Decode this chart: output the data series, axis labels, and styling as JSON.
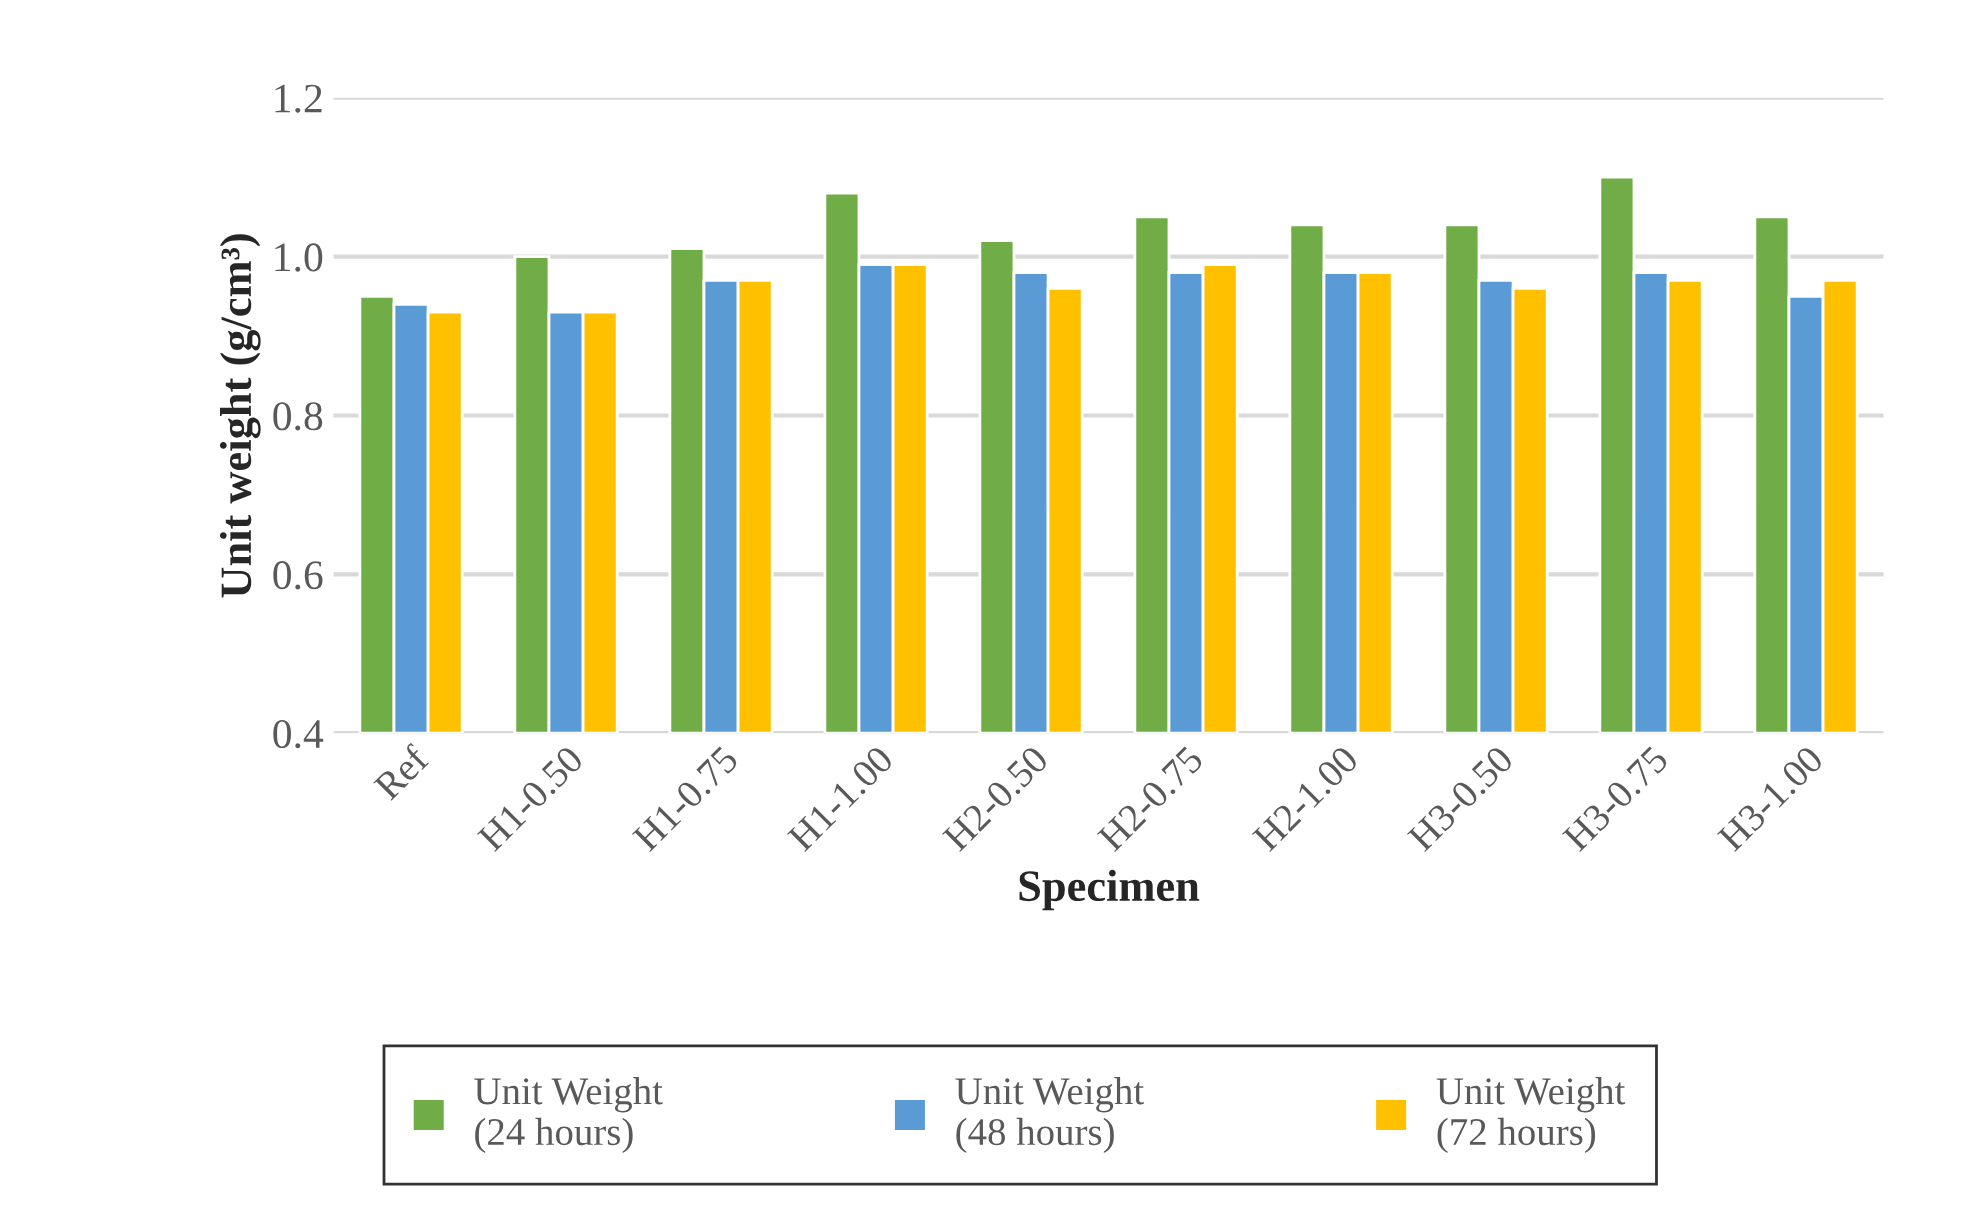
{
  "chart_data": {
    "type": "bar",
    "xlabel": "Specimen",
    "ylabel": "Unit weight (g/cm³)",
    "categories": [
      "Ref",
      "H1-0.50",
      "H1-0.75",
      "H1-1.00",
      "H2-0.50",
      "H2-0.75",
      "H2-1.00",
      "H3-0.50",
      "H3-0.75",
      "H3-1.00"
    ],
    "series": [
      {
        "name": "Unit Weight\n(24 hours)",
        "color": "#70ad47",
        "values": [
          0.95,
          1.0,
          1.01,
          1.08,
          1.02,
          1.05,
          1.04,
          1.04,
          1.1,
          1.05
        ]
      },
      {
        "name": "Unit Weight\n(48 hours)",
        "color": "#5b9bd5",
        "values": [
          0.94,
          0.93,
          0.97,
          0.99,
          0.98,
          0.98,
          0.98,
          0.97,
          0.98,
          0.95
        ]
      },
      {
        "name": "Unit Weight\n(72 hours)",
        "color": "#ffc000",
        "values": [
          0.93,
          0.93,
          0.97,
          0.99,
          0.96,
          0.99,
          0.98,
          0.96,
          0.97,
          0.97
        ]
      }
    ],
    "ylim": [
      0.4,
      1.2
    ],
    "yticks": [
      {
        "value": 0.4,
        "label": "0.4"
      },
      {
        "value": 0.6,
        "label": "0.6"
      },
      {
        "value": 0.8,
        "label": "0.8"
      },
      {
        "value": 1.0,
        "label": "1.0"
      },
      {
        "value": 1.2,
        "label": "1.2"
      }
    ],
    "grid": "y",
    "legend": "bottom"
  }
}
